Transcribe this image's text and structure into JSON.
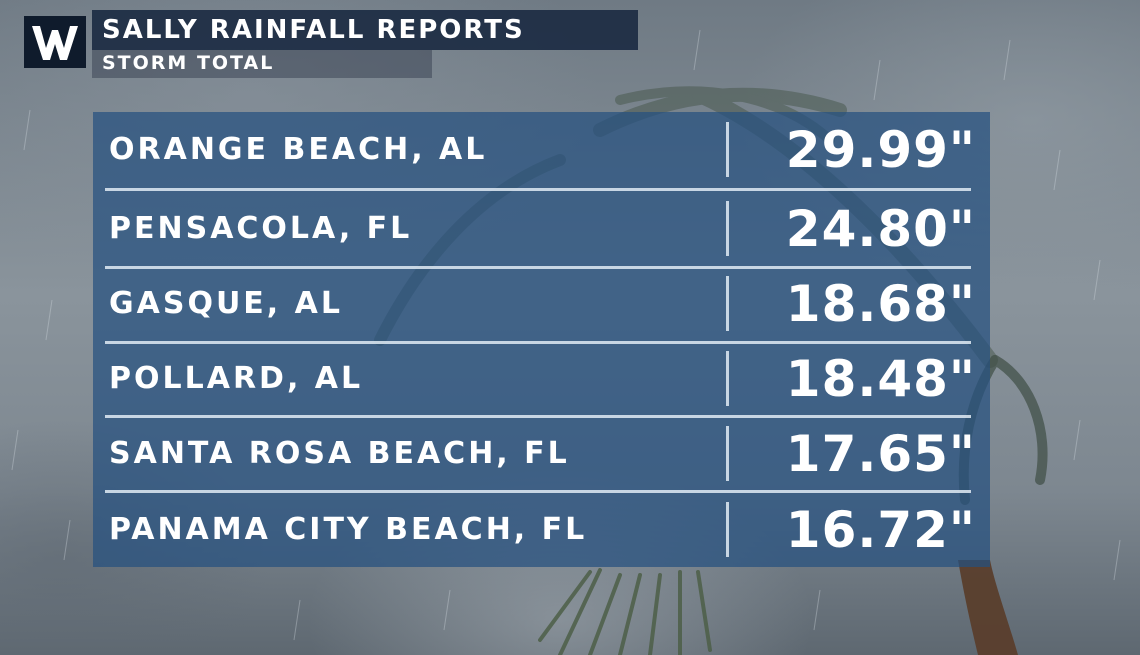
{
  "header": {
    "logo_icon": "weather-nation-w-logo-icon",
    "title": "SALLY RAINFALL REPORTS",
    "subtitle": "STORM TOTAL"
  },
  "reports": [
    {
      "location": "ORANGE BEACH, AL",
      "total": "29.99\""
    },
    {
      "location": "PENSACOLA, FL",
      "total": "24.80\""
    },
    {
      "location": "GASQUE, AL",
      "total": "18.68\""
    },
    {
      "location": "POLLARD, AL",
      "total": "18.48\""
    },
    {
      "location": "SANTA ROSA BEACH, FL",
      "total": "17.65\""
    },
    {
      "location": "PANAMA CITY BEACH, FL",
      "total": "16.72\""
    }
  ],
  "colors": {
    "panel": "#265080",
    "title_bar": "#182840",
    "text": "#ffffff",
    "divider": "#e1ebf5"
  }
}
